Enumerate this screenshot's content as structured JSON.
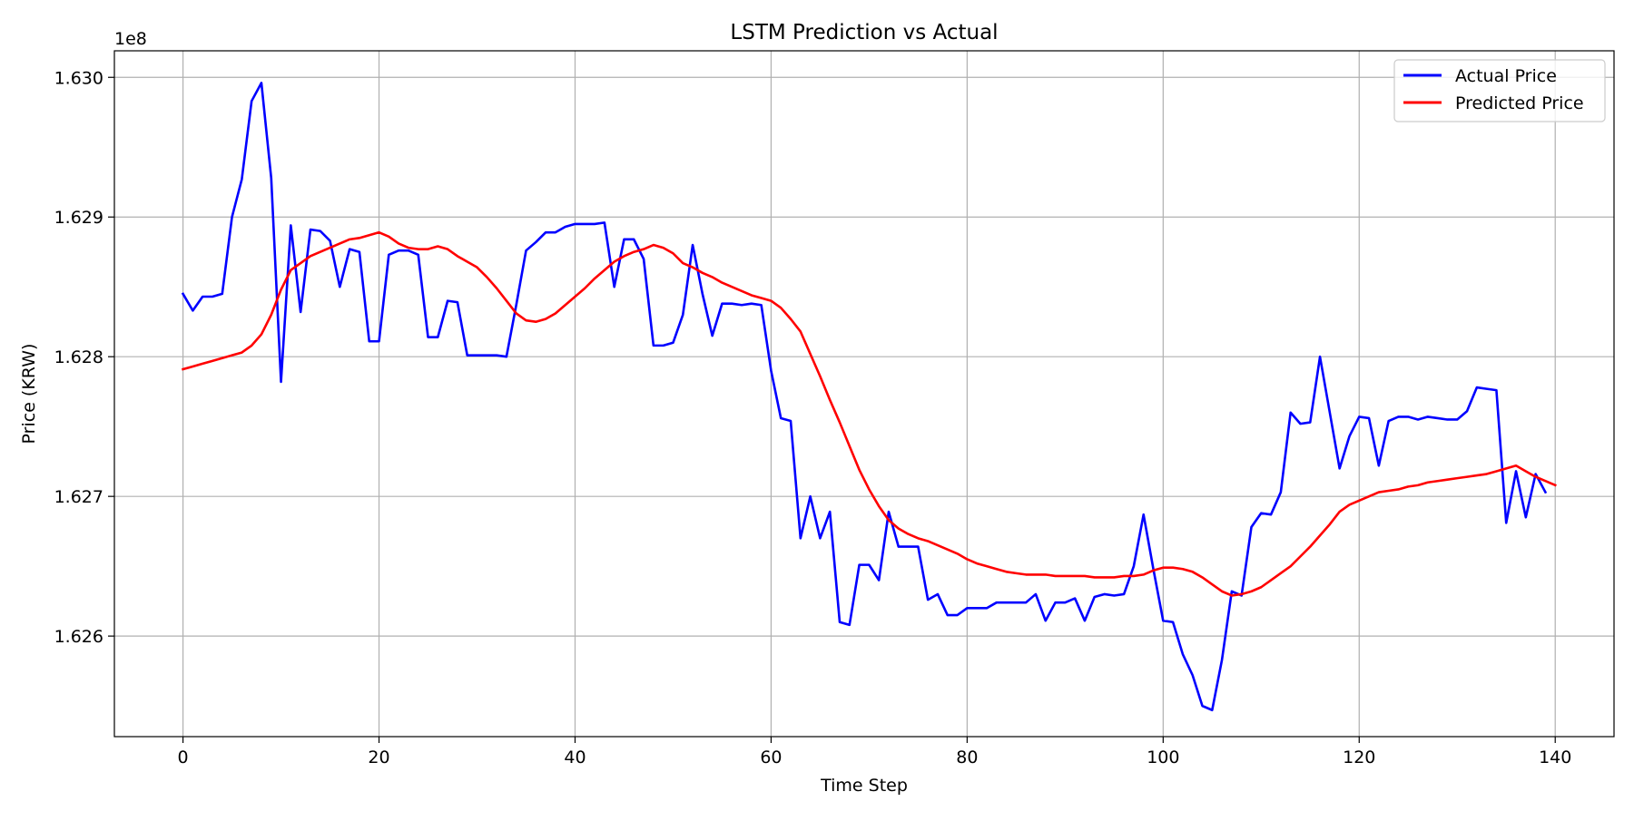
{
  "chart_data": {
    "type": "line",
    "title": "LSTM Prediction vs Actual",
    "xlabel": "Time Step",
    "ylabel": "Price (KRW)",
    "offset_text": "1e8",
    "y_scale_factor": 100000000,
    "xlim": [
      -7,
      146
    ],
    "ylim": [
      162.528,
      163.019
    ],
    "xticks": [
      0,
      20,
      40,
      60,
      80,
      100,
      120,
      140
    ],
    "xtick_labels": [
      "0",
      "20",
      "40",
      "60",
      "80",
      "100",
      "120",
      "140"
    ],
    "yticks": [
      162.6,
      162.7,
      162.8,
      162.9,
      163.0
    ],
    "ytick_labels": [
      "1.626",
      "1.627",
      "1.628",
      "1.629",
      "1.630"
    ],
    "grid": true,
    "legend_position": "top-right",
    "series": [
      {
        "name": "Actual Price",
        "color": "#0000ff",
        "values": [
          162.845,
          162.833,
          162.843,
          162.843,
          162.845,
          162.9,
          162.927,
          162.983,
          162.996,
          162.928,
          162.782,
          162.894,
          162.832,
          162.891,
          162.89,
          162.883,
          162.85,
          162.877,
          162.875,
          162.811,
          162.811,
          162.873,
          162.876,
          162.876,
          162.873,
          162.814,
          162.814,
          162.84,
          162.839,
          162.801,
          162.801,
          162.801,
          162.801,
          162.8,
          162.837,
          162.876,
          162.882,
          162.889,
          162.889,
          162.893,
          162.895,
          162.895,
          162.895,
          162.896,
          162.85,
          162.884,
          162.884,
          162.87,
          162.808,
          162.808,
          162.81,
          162.83,
          162.88,
          162.845,
          162.815,
          162.838,
          162.838,
          162.837,
          162.838,
          162.837,
          162.79,
          162.756,
          162.754,
          162.67,
          162.7,
          162.67,
          162.689,
          162.61,
          162.608,
          162.651,
          162.651,
          162.64,
          162.689,
          162.664,
          162.664,
          162.664,
          162.626,
          162.63,
          162.615,
          162.615,
          162.62,
          162.62,
          162.62,
          162.624,
          162.624,
          162.624,
          162.624,
          162.63,
          162.611,
          162.624,
          162.624,
          162.627,
          162.611,
          162.628,
          162.63,
          162.629,
          162.63,
          162.65,
          162.687,
          162.648,
          162.611,
          162.61,
          162.587,
          162.572,
          162.55,
          162.547,
          162.583,
          162.632,
          162.629,
          162.678,
          162.688,
          162.687,
          162.703,
          162.76,
          162.752,
          162.753,
          162.8,
          162.76,
          162.72,
          162.743,
          162.757,
          162.756,
          162.722,
          162.754,
          162.757,
          162.757,
          162.755,
          162.757,
          162.756,
          162.755,
          162.755,
          162.761,
          162.778,
          162.777,
          162.776,
          162.681,
          162.718,
          162.685,
          162.716,
          162.703
        ]
      },
      {
        "name": "Predicted Price",
        "color": "#ff0000",
        "values": [
          162.791,
          162.793,
          162.795,
          162.797,
          162.799,
          162.801,
          162.803,
          162.808,
          162.816,
          162.83,
          162.848,
          162.862,
          162.867,
          162.872,
          162.875,
          162.878,
          162.881,
          162.884,
          162.885,
          162.887,
          162.889,
          162.886,
          162.881,
          162.878,
          162.877,
          162.877,
          162.879,
          162.877,
          162.872,
          162.868,
          162.864,
          162.857,
          162.849,
          162.84,
          162.831,
          162.826,
          162.825,
          162.827,
          162.831,
          162.837,
          162.843,
          162.849,
          162.856,
          162.862,
          162.868,
          162.872,
          162.875,
          162.877,
          162.88,
          162.878,
          162.874,
          162.867,
          162.864,
          162.86,
          162.857,
          162.853,
          162.85,
          162.847,
          162.844,
          162.842,
          162.84,
          162.835,
          162.827,
          162.818,
          162.802,
          162.786,
          162.769,
          162.753,
          162.736,
          162.719,
          162.705,
          162.693,
          162.683,
          162.677,
          162.673,
          162.67,
          162.668,
          162.665,
          162.662,
          162.659,
          162.655,
          162.652,
          162.65,
          162.648,
          162.646,
          162.645,
          162.644,
          162.644,
          162.644,
          162.643,
          162.643,
          162.643,
          162.643,
          162.642,
          162.642,
          162.642,
          162.643,
          162.643,
          162.644,
          162.647,
          162.649,
          162.649,
          162.648,
          162.646,
          162.642,
          162.637,
          162.632,
          162.629,
          162.63,
          162.632,
          162.635,
          162.64,
          162.645,
          162.65,
          162.657,
          162.664,
          162.672,
          162.68,
          162.689,
          162.694,
          162.697,
          162.7,
          162.703,
          162.704,
          162.705,
          162.707,
          162.708,
          162.71,
          162.711,
          162.712,
          162.713,
          162.714,
          162.715,
          162.716,
          162.718,
          162.72,
          162.722,
          162.718,
          162.714,
          162.711,
          162.708
        ]
      }
    ]
  }
}
